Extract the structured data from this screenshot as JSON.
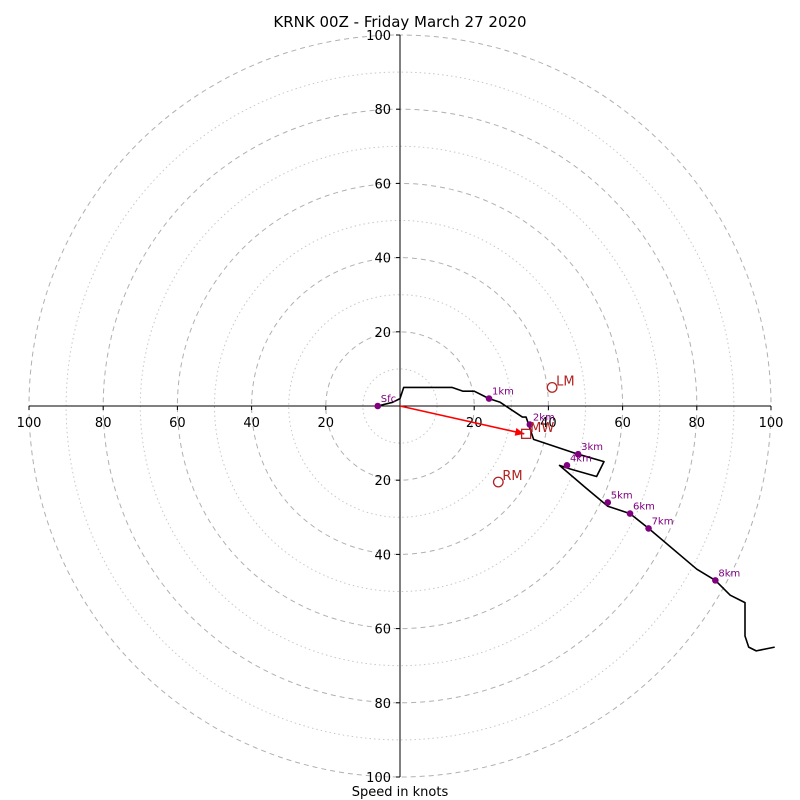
{
  "chart_data": {
    "type": "hodograph",
    "title": "KRNK 00Z - Friday March 27 2020",
    "xlabel": "Speed in knots",
    "range": [
      -100,
      100
    ],
    "rings_major": [
      20,
      40,
      60,
      80,
      100
    ],
    "rings_minor": [
      10,
      30,
      50,
      70,
      90
    ],
    "x_ticks": [
      "100",
      "80",
      "60",
      "40",
      "20",
      "20",
      "40",
      "60",
      "80",
      "100"
    ],
    "y_ticks": [
      "100",
      "80",
      "60",
      "40",
      "20",
      "20",
      "40",
      "60",
      "80",
      "100"
    ],
    "grid": true,
    "profile": [
      [
        -6,
        0
      ],
      [
        -2,
        1
      ],
      [
        0,
        2
      ],
      [
        1,
        5
      ],
      [
        14,
        5
      ],
      [
        17,
        4
      ],
      [
        20,
        4
      ],
      [
        22,
        3
      ],
      [
        24,
        2
      ],
      [
        27,
        1
      ],
      [
        30,
        -1
      ],
      [
        33,
        -3
      ],
      [
        34,
        -3
      ],
      [
        35,
        -6
      ],
      [
        36,
        -9
      ],
      [
        48,
        -13
      ],
      [
        55,
        -15
      ],
      [
        53,
        -19
      ],
      [
        46,
        -17
      ],
      [
        43,
        -16
      ],
      [
        50,
        -22
      ],
      [
        56,
        -27
      ],
      [
        62,
        -29
      ],
      [
        67,
        -33
      ],
      [
        80,
        -44
      ],
      [
        85,
        -47
      ],
      [
        89,
        -51
      ],
      [
        93,
        -53
      ],
      [
        93,
        -62
      ],
      [
        94,
        -65
      ],
      [
        96,
        -66
      ],
      [
        101,
        -65
      ]
    ],
    "height_points": [
      {
        "label": "Sfc",
        "u": -6,
        "v": 0
      },
      {
        "label": "1km",
        "u": 24,
        "v": 2
      },
      {
        "label": "2km",
        "u": 35,
        "v": -5
      },
      {
        "label": "3km",
        "u": 48,
        "v": -13
      },
      {
        "label": "4km",
        "u": 45,
        "v": -16
      },
      {
        "label": "5km",
        "u": 56,
        "v": -26
      },
      {
        "label": "6km",
        "u": 62,
        "v": -29
      },
      {
        "label": "7km",
        "u": 67,
        "v": -33
      },
      {
        "label": "8km",
        "u": 85,
        "v": -47
      }
    ],
    "motion_points": [
      {
        "label": "LM",
        "u": 41,
        "v": 5,
        "marker": "circle"
      },
      {
        "label": "RM",
        "u": 26.5,
        "v": -20.5,
        "marker": "circle"
      },
      {
        "label": "MW",
        "u": 34,
        "v": -7.5,
        "marker": "square"
      }
    ],
    "mean_wind_vector": {
      "u": 33.5,
      "v": -7.5
    },
    "colors": {
      "profile": "#000000",
      "height_points": "#800080",
      "motion": "#b22222",
      "vector": "#ff0000",
      "grid": "#b0b0b0"
    }
  }
}
